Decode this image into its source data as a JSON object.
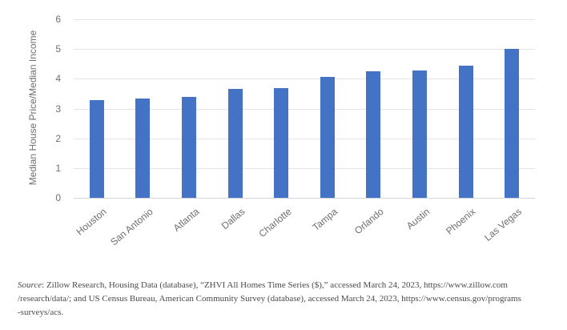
{
  "chart_data": {
    "type": "bar",
    "title": "",
    "xlabel": "",
    "ylabel": "Median House Price/Median Income",
    "categories": [
      "Houston",
      "San Antonio",
      "Atlanta",
      "Dallas",
      "Charlotte",
      "Tampa",
      "Orlando",
      "Austin",
      "Phoenix",
      "Las Vegas"
    ],
    "values": [
      3.27,
      3.34,
      3.39,
      3.66,
      3.68,
      4.05,
      4.26,
      4.28,
      4.45,
      5.0
    ],
    "ylim": [
      0,
      6
    ],
    "ytick_values": [
      0,
      1,
      2,
      3,
      4,
      5,
      6
    ],
    "grid": "horizontal",
    "legend": "none",
    "x_label_rotation_deg": -40
  },
  "colors": {
    "bar": "#4472C4",
    "gridline": "#E4E4E4",
    "baseline": "#D5D5D5",
    "axis_text": "#6F6F6F",
    "source_text": "#4A4A4A",
    "background": "#FFFFFF"
  },
  "footer": {
    "source_label": "Source",
    "source_line1": ": Zillow Research, Housing Data (database), “ZHVI All Homes Time Series ($),” accessed March 24, 2023, https://www.zillow.com",
    "source_line2": "/research/data/; and US Census Bureau, American Community Survey (database), accessed March 24, 2023, https://www.census.gov/programs",
    "source_line3": "-surveys/acs."
  }
}
